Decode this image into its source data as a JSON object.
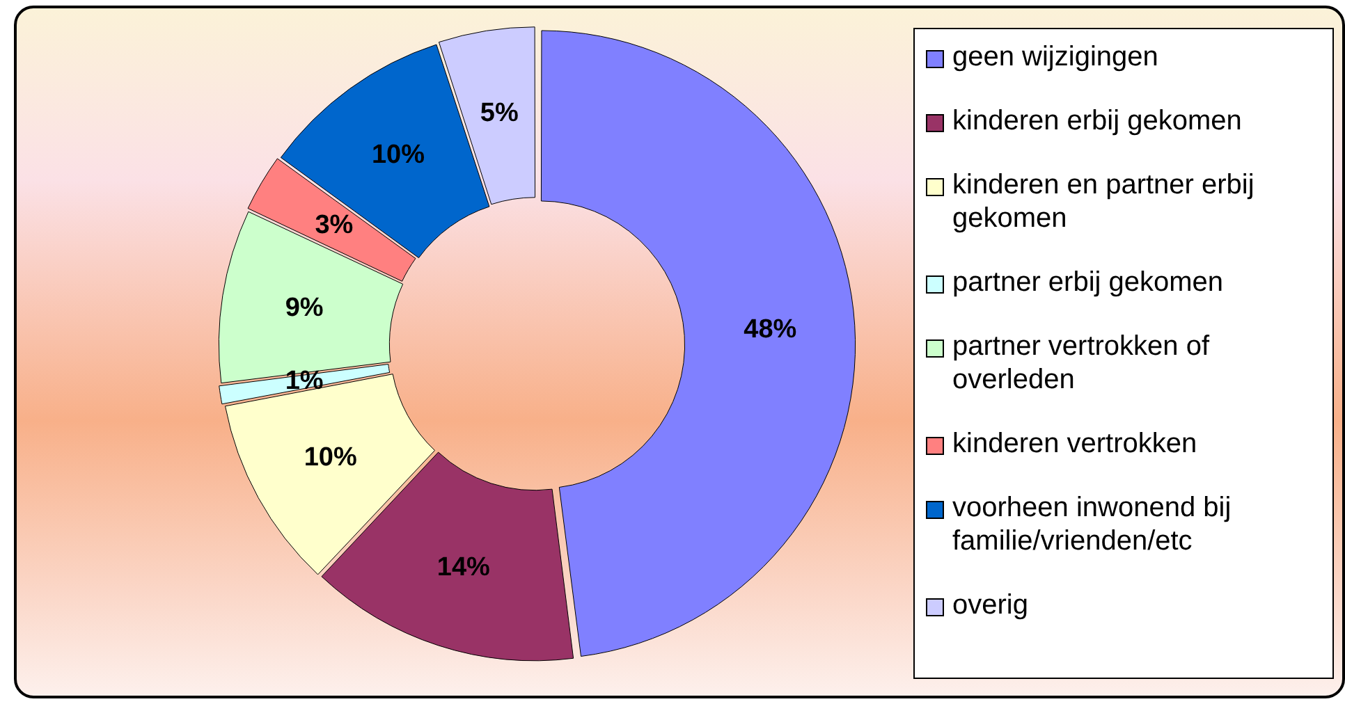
{
  "chart_data": {
    "type": "donut",
    "categories": [
      "geen wijzigingen",
      "kinderen erbij gekomen",
      "kinderen en partner erbij gekomen",
      "partner erbij gekomen",
      "partner vertrokken of overleden",
      "kinderen vertrokken",
      "voorheen inwonend bij familie/vrienden/etc",
      "overig"
    ],
    "values": [
      48,
      14,
      10,
      1,
      9,
      3,
      10,
      5
    ],
    "value_labels": [
      "48%",
      "14%",
      "10%",
      "1%",
      "9%",
      "3%",
      "10%",
      "5%"
    ],
    "colors": [
      "#8080ff",
      "#993366",
      "#ffffcc",
      "#ccffff",
      "#ccffcc",
      "#ff8080",
      "#0066cc",
      "#ccccff"
    ],
    "legend": "right"
  }
}
